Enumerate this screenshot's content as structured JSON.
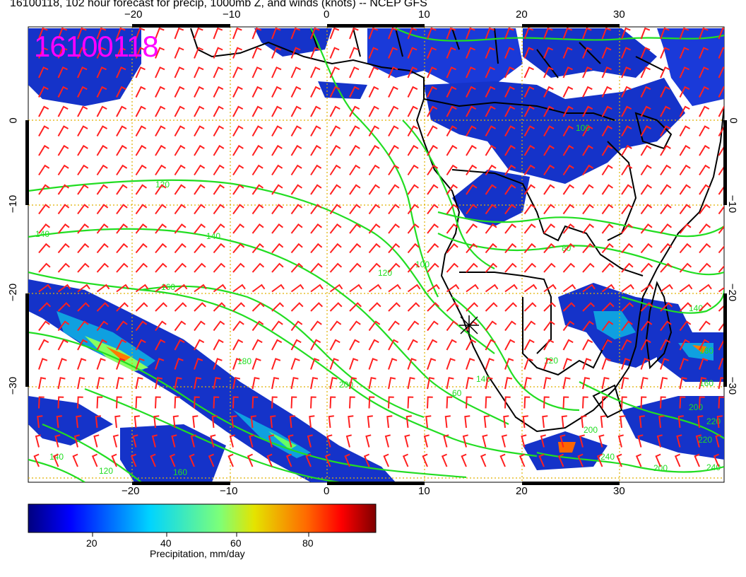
{
  "header": {
    "title": "16100118, 102 hour forecast for precip, 1000mb Z, and winds (knots) -- NCEP GFS",
    "stamp": "16100118"
  },
  "axes": {
    "lon_ticks_top": [
      "−20",
      "−10",
      "0",
      "10",
      "20",
      "30"
    ],
    "lon_ticks_bottom": [
      "−20",
      "−10",
      "0",
      "10",
      "20",
      "30"
    ],
    "lat_ticks_left": [
      "0",
      "−10",
      "−20",
      "−30"
    ],
    "lat_ticks_right": [
      "0",
      "−10",
      "−20",
      "−30"
    ]
  },
  "contours": {
    "labels": [
      "120",
      "140",
      "140",
      "160",
      "180",
      "200",
      "120",
      "100",
      "140",
      "80",
      "120",
      "100",
      "140",
      "160",
      "160",
      "200",
      "220",
      "240",
      "200",
      "200",
      "60",
      "140",
      "120",
      "160",
      "220",
      "240"
    ]
  },
  "colorbar": {
    "tick_labels": [
      "20",
      "40",
      "60",
      "80"
    ],
    "title": "Precipitation, mm/day",
    "min": 0,
    "max": 100
  },
  "colors": {
    "contour": "#22dd22",
    "barb": "#ff2020",
    "coast": "#000000",
    "grid": "#e0b000",
    "stamp": "#ff00ff"
  }
}
